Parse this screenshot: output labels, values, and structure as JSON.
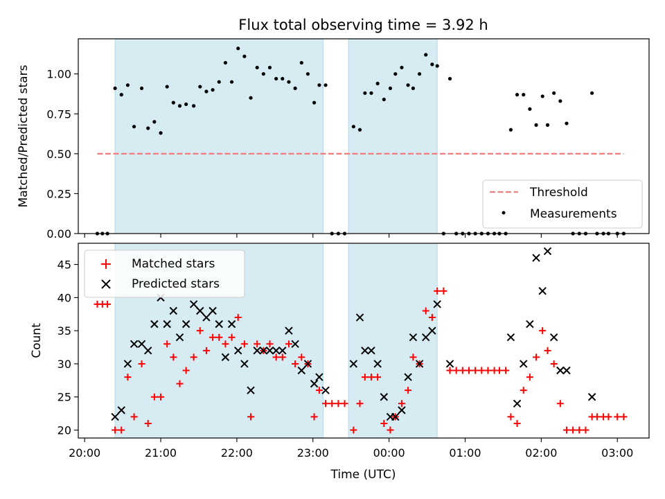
{
  "chart_data": [
    {
      "type": "scatter",
      "title": "Flux total observing time = 3.92 h",
      "ylabel": "Matched/Predicted stars",
      "xlim": [
        "19:55",
        "03:25"
      ],
      "ylim": [
        0,
        1.22
      ],
      "yticks": [
        0.0,
        0.25,
        0.5,
        0.75,
        1.0
      ],
      "ytick_labels": [
        "0.00",
        "0.25",
        "0.50",
        "0.75",
        "1.00"
      ],
      "shaded_intervals": [
        [
          "20:24",
          "23:08"
        ],
        [
          "23:28",
          "00:38"
        ]
      ],
      "shade_color": "#add8e6",
      "threshold": {
        "name": "Threshold",
        "value": 0.5,
        "x_range": [
          "20:10",
          "03:05"
        ],
        "color": "#f08080"
      },
      "legend": {
        "placement": "lower right",
        "entries": [
          "Threshold",
          "Measurements"
        ]
      },
      "series": [
        {
          "name": "Measurements",
          "color": "#000000",
          "points": [
            [
              "20:10",
              0
            ],
            [
              "20:14",
              0
            ],
            [
              "20:18",
              0
            ],
            [
              "20:24",
              0.91
            ],
            [
              "20:29",
              0.87
            ],
            [
              "20:34",
              0.93
            ],
            [
              "20:39",
              0.67
            ],
            [
              "20:45",
              0.91
            ],
            [
              "20:50",
              0.66
            ],
            [
              "20:55",
              0.7
            ],
            [
              "21:00",
              0.63
            ],
            [
              "21:05",
              0.92
            ],
            [
              "21:10",
              0.82
            ],
            [
              "21:15",
              0.8
            ],
            [
              "21:20",
              0.81
            ],
            [
              "21:26",
              0.8
            ],
            [
              "21:31",
              0.92
            ],
            [
              "21:36",
              0.89
            ],
            [
              "21:41",
              0.9
            ],
            [
              "21:46",
              0.95
            ],
            [
              "21:51",
              1.07
            ],
            [
              "21:56",
              0.95
            ],
            [
              "22:01",
              1.16
            ],
            [
              "22:06",
              1.11
            ],
            [
              "22:11",
              0.85
            ],
            [
              "22:16",
              1.04
            ],
            [
              "22:21",
              1.0
            ],
            [
              "22:26",
              1.04
            ],
            [
              "22:31",
              0.97
            ],
            [
              "22:36",
              0.97
            ],
            [
              "22:41",
              0.95
            ],
            [
              "22:46",
              0.91
            ],
            [
              "22:51",
              1.07
            ],
            [
              "22:56",
              1.0
            ],
            [
              "23:01",
              0.82
            ],
            [
              "23:05",
              0.93
            ],
            [
              "23:10",
              0.93
            ],
            [
              "23:15",
              0
            ],
            [
              "23:20",
              0
            ],
            [
              "23:25",
              0
            ],
            [
              "23:32",
              0.67
            ],
            [
              "23:37",
              0.65
            ],
            [
              "23:41",
              0.88
            ],
            [
              "23:46",
              0.88
            ],
            [
              "23:51",
              0.94
            ],
            [
              "23:56",
              0.84
            ],
            [
              "00:01",
              0.91
            ],
            [
              "00:05",
              1.0
            ],
            [
              "00:10",
              1.04
            ],
            [
              "00:15",
              0.93
            ],
            [
              "00:19",
              0.91
            ],
            [
              "00:24",
              1.0
            ],
            [
              "00:29",
              1.12
            ],
            [
              "00:34",
              1.06
            ],
            [
              "00:38",
              1.05
            ],
            [
              "00:43",
              0
            ],
            [
              "00:48",
              0.97
            ],
            [
              "00:53",
              0
            ],
            [
              "00:58",
              0
            ],
            [
              "01:03",
              0
            ],
            [
              "01:08",
              0
            ],
            [
              "01:13",
              0
            ],
            [
              "01:18",
              0
            ],
            [
              "01:23",
              0
            ],
            [
              "01:27",
              0
            ],
            [
              "01:32",
              0
            ],
            [
              "01:36",
              0.65
            ],
            [
              "01:41",
              0.87
            ],
            [
              "01:46",
              0.87
            ],
            [
              "01:51",
              0.78
            ],
            [
              "01:56",
              0.68
            ],
            [
              "02:01",
              0.86
            ],
            [
              "02:05",
              0.68
            ],
            [
              "02:10",
              0.88
            ],
            [
              "02:15",
              0.83
            ],
            [
              "02:20",
              0.69
            ],
            [
              "02:25",
              0
            ],
            [
              "02:30",
              0
            ],
            [
              "02:35",
              0
            ],
            [
              "02:40",
              0.88
            ],
            [
              "02:44",
              0
            ],
            [
              "02:49",
              0
            ],
            [
              "02:53",
              0
            ],
            [
              "03:00",
              0
            ],
            [
              "03:05",
              0
            ]
          ]
        }
      ]
    },
    {
      "type": "scatter",
      "xlabel": "Time (UTC)",
      "ylabel": "Count",
      "xlim": [
        "19:55",
        "03:25"
      ],
      "ylim": [
        18.8,
        48.2
      ],
      "yticks": [
        20,
        25,
        30,
        35,
        40,
        45
      ],
      "xticks": [
        "20:00",
        "21:00",
        "22:00",
        "23:00",
        "00:00",
        "01:00",
        "02:00",
        "03:00"
      ],
      "shaded_intervals": [
        [
          "20:24",
          "23:08"
        ],
        [
          "23:28",
          "00:38"
        ]
      ],
      "shade_color": "#add8e6",
      "legend": {
        "placement": "upper left",
        "entries": [
          "Matched stars",
          "Predicted stars"
        ]
      },
      "series": [
        {
          "name": "Matched stars",
          "marker": "+",
          "color": "#ff0000",
          "points": [
            [
              "20:10",
              39
            ],
            [
              "20:14",
              39
            ],
            [
              "20:18",
              39
            ],
            [
              "20:24",
              20
            ],
            [
              "20:29",
              20
            ],
            [
              "20:34",
              28
            ],
            [
              "20:39",
              22
            ],
            [
              "20:45",
              30
            ],
            [
              "20:50",
              21
            ],
            [
              "20:55",
              25
            ],
            [
              "21:00",
              25
            ],
            [
              "21:05",
              33
            ],
            [
              "21:10",
              31
            ],
            [
              "21:15",
              27
            ],
            [
              "21:20",
              29
            ],
            [
              "21:26",
              31
            ],
            [
              "21:31",
              35
            ],
            [
              "21:36",
              32
            ],
            [
              "21:41",
              34
            ],
            [
              "21:46",
              34
            ],
            [
              "21:51",
              33
            ],
            [
              "21:56",
              34
            ],
            [
              "22:01",
              37
            ],
            [
              "22:06",
              33
            ],
            [
              "22:11",
              22
            ],
            [
              "22:16",
              33
            ],
            [
              "22:21",
              32
            ],
            [
              "22:26",
              33
            ],
            [
              "22:31",
              31
            ],
            [
              "22:36",
              31
            ],
            [
              "22:41",
              33
            ],
            [
              "22:46",
              30
            ],
            [
              "22:51",
              31
            ],
            [
              "22:56",
              30
            ],
            [
              "23:01",
              22
            ],
            [
              "23:05",
              26
            ],
            [
              "23:10",
              24
            ],
            [
              "23:15",
              24
            ],
            [
              "23:20",
              24
            ],
            [
              "23:25",
              24
            ],
            [
              "23:32",
              20
            ],
            [
              "23:37",
              24
            ],
            [
              "23:41",
              28
            ],
            [
              "23:46",
              28
            ],
            [
              "23:51",
              28
            ],
            [
              "23:56",
              21
            ],
            [
              "00:01",
              20
            ],
            [
              "00:05",
              22
            ],
            [
              "00:10",
              24
            ],
            [
              "00:15",
              26
            ],
            [
              "00:19",
              31
            ],
            [
              "00:24",
              30
            ],
            [
              "00:29",
              38
            ],
            [
              "00:34",
              37
            ],
            [
              "00:38",
              41
            ],
            [
              "00:43",
              41
            ],
            [
              "00:48",
              29
            ],
            [
              "00:53",
              29
            ],
            [
              "00:58",
              29
            ],
            [
              "01:03",
              29
            ],
            [
              "01:08",
              29
            ],
            [
              "01:13",
              29
            ],
            [
              "01:18",
              29
            ],
            [
              "01:23",
              29
            ],
            [
              "01:27",
              29
            ],
            [
              "01:32",
              29
            ],
            [
              "01:36",
              22
            ],
            [
              "01:41",
              21
            ],
            [
              "01:46",
              26
            ],
            [
              "01:51",
              28
            ],
            [
              "01:56",
              31
            ],
            [
              "02:01",
              35
            ],
            [
              "02:05",
              32
            ],
            [
              "02:10",
              30
            ],
            [
              "02:15",
              24
            ],
            [
              "02:20",
              20
            ],
            [
              "02:25",
              20
            ],
            [
              "02:30",
              20
            ],
            [
              "02:35",
              20
            ],
            [
              "02:40",
              22
            ],
            [
              "02:44",
              22
            ],
            [
              "02:49",
              22
            ],
            [
              "02:53",
              22
            ],
            [
              "03:00",
              22
            ],
            [
              "03:05",
              22
            ]
          ]
        },
        {
          "name": "Predicted stars",
          "marker": "x",
          "color": "#000000",
          "points": [
            [
              "20:24",
              22
            ],
            [
              "20:29",
              23
            ],
            [
              "20:34",
              30
            ],
            [
              "20:39",
              33
            ],
            [
              "20:45",
              33
            ],
            [
              "20:50",
              32
            ],
            [
              "20:55",
              36
            ],
            [
              "21:00",
              40
            ],
            [
              "21:05",
              36
            ],
            [
              "21:10",
              38
            ],
            [
              "21:15",
              34
            ],
            [
              "21:20",
              36
            ],
            [
              "21:26",
              39
            ],
            [
              "21:31",
              38
            ],
            [
              "21:36",
              37
            ],
            [
              "21:41",
              38
            ],
            [
              "21:46",
              36
            ],
            [
              "21:51",
              31
            ],
            [
              "21:56",
              36
            ],
            [
              "22:01",
              32
            ],
            [
              "22:06",
              30
            ],
            [
              "22:11",
              26
            ],
            [
              "22:16",
              32
            ],
            [
              "22:21",
              32
            ],
            [
              "22:26",
              32
            ],
            [
              "22:31",
              32
            ],
            [
              "22:36",
              32
            ],
            [
              "22:41",
              35
            ],
            [
              "22:46",
              33
            ],
            [
              "22:51",
              29
            ],
            [
              "22:56",
              30
            ],
            [
              "23:01",
              27
            ],
            [
              "23:05",
              28
            ],
            [
              "23:10",
              26
            ],
            [
              "23:32",
              30
            ],
            [
              "23:37",
              37
            ],
            [
              "23:41",
              32
            ],
            [
              "23:46",
              32
            ],
            [
              "23:51",
              30
            ],
            [
              "23:56",
              25
            ],
            [
              "00:01",
              22
            ],
            [
              "00:05",
              22
            ],
            [
              "00:10",
              23
            ],
            [
              "00:15",
              28
            ],
            [
              "00:19",
              34
            ],
            [
              "00:24",
              30
            ],
            [
              "00:29",
              34
            ],
            [
              "00:34",
              35
            ],
            [
              "00:38",
              39
            ],
            [
              "00:48",
              30
            ],
            [
              "01:36",
              34
            ],
            [
              "01:41",
              24
            ],
            [
              "01:46",
              30
            ],
            [
              "01:51",
              36
            ],
            [
              "01:56",
              46
            ],
            [
              "02:01",
              41
            ],
            [
              "02:05",
              47
            ],
            [
              "02:10",
              34
            ],
            [
              "02:15",
              29
            ],
            [
              "02:20",
              29
            ],
            [
              "02:40",
              25
            ]
          ]
        }
      ]
    }
  ]
}
